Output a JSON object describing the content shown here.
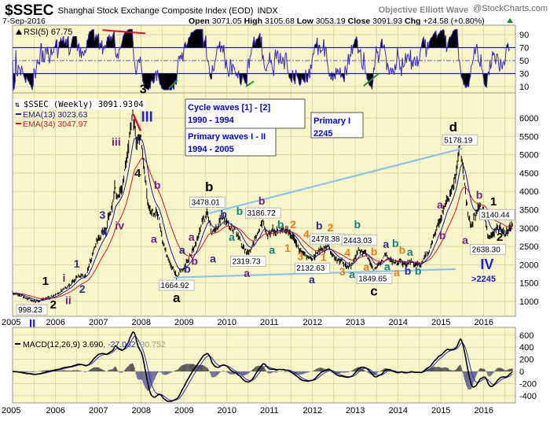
{
  "header": {
    "symbol": "$SSEC",
    "name": "Shanghai Stock Exchange Composite Index (EOD)",
    "exchange": "INDX",
    "brand": "Objective Elliott Wave",
    "site": "@StockCharts.com",
    "date": "7-Sep-2016",
    "open_label": "Open",
    "open": "3071.05",
    "high_label": "High",
    "high": "3105.68",
    "low_label": "Low",
    "low": "3053.19",
    "close_label": "Close",
    "close": "3091.93",
    "chg_label": "Chg",
    "chg": "+24.58 (+0.80%)"
  },
  "rsi_panel": {
    "label": "RSI(5) 67.75",
    "ticks": [
      "90",
      "70",
      "50",
      "30",
      "10"
    ]
  },
  "price_panel": {
    "legend_title": "$SSEC (Weekly) 3091.93",
    "legend_peak_suffix": "04",
    "ema13_label": "EMA(13) 3023.63",
    "ema34_label": "EMA(34) 3047.97",
    "ticks": [
      "6000",
      "5500",
      "5000",
      "4500",
      "4000",
      "3500",
      "3000",
      "2500",
      "2000",
      "1500",
      "1000"
    ],
    "boxes": [
      {
        "line1": "Cycle waves [1] - [2]",
        "line2": "1990 - 1994"
      },
      {
        "line1": "Primary waves I - II",
        "line2": "1994 - 2005"
      },
      {
        "line1": "Primary I",
        "line2": "2245"
      }
    ]
  },
  "macd_panel": {
    "label": "MACD(12,26,9)",
    "macd": "3.690",
    "signal": ", -27.062",
    "hist": ", 30.752",
    "ticks": [
      "600",
      "400",
      "200",
      "0",
      "-200",
      "-400"
    ]
  },
  "x_axis": {
    "years": [
      "2005",
      "2006",
      "2007",
      "2008",
      "2009",
      "2010",
      "2011",
      "2012",
      "2013",
      "2014",
      "2015",
      "2016"
    ],
    "marker": "II"
  },
  "colors": {
    "panel": "#f8f6c8",
    "grid": "#cfcf9a",
    "ema13": "#1a1aa8",
    "ema34": "#e0102a",
    "trend": "#8ec4f0",
    "navy": "#2b2b9a",
    "purple": "#7a1a86",
    "teal": "#137f7f",
    "orange": "#f07a10",
    "blue": "#1a1aee"
  },
  "chart_data": {
    "type": "line",
    "title": "Shanghai Stock Exchange Composite Index (EOD) - Weekly",
    "xlabel": "",
    "ylabel": "",
    "xlim": [
      2005,
      2016.75
    ],
    "ylim": [
      750,
      6300
    ],
    "price_waypoints": [
      [
        2005.0,
        1260
      ],
      [
        2005.45,
        998
      ],
      [
        2005.9,
        1100
      ],
      [
        2006.0,
        1160
      ],
      [
        2006.3,
        1400
      ],
      [
        2006.5,
        1650
      ],
      [
        2006.7,
        1650
      ],
      [
        2006.95,
        2600
      ],
      [
        2007.2,
        3000
      ],
      [
        2007.4,
        4100
      ],
      [
        2007.45,
        3700
      ],
      [
        2007.6,
        4300
      ],
      [
        2007.8,
        6124
      ],
      [
        2007.9,
        5300
      ],
      [
        2008.0,
        5500
      ],
      [
        2008.1,
        4400
      ],
      [
        2008.2,
        3500
      ],
      [
        2008.4,
        3500
      ],
      [
        2008.5,
        2700
      ],
      [
        2008.7,
        2000
      ],
      [
        2008.83,
        1665
      ],
      [
        2008.95,
        1850
      ],
      [
        2009.1,
        2100
      ],
      [
        2009.3,
        2600
      ],
      [
        2009.55,
        3478
      ],
      [
        2009.65,
        2800
      ],
      [
        2009.9,
        3300
      ],
      [
        2010.1,
        3100
      ],
      [
        2010.4,
        2500
      ],
      [
        2010.5,
        2320
      ],
      [
        2010.6,
        2600
      ],
      [
        2010.85,
        3187
      ],
      [
        2010.95,
        2800
      ],
      [
        2011.3,
        3000
      ],
      [
        2011.5,
        2750
      ],
      [
        2011.7,
        2400
      ],
      [
        2012.0,
        2132
      ],
      [
        2012.2,
        2450
      ],
      [
        2012.35,
        2478
      ],
      [
        2012.6,
        2100
      ],
      [
        2012.9,
        1950
      ],
      [
        2013.1,
        2443
      ],
      [
        2013.3,
        2200
      ],
      [
        2013.45,
        1850
      ],
      [
        2013.7,
        2200
      ],
      [
        2014.0,
        2050
      ],
      [
        2014.3,
        2050
      ],
      [
        2014.5,
        2000
      ],
      [
        2014.7,
        2300
      ],
      [
        2015.0,
        3300
      ],
      [
        2015.3,
        4100
      ],
      [
        2015.45,
        5178
      ],
      [
        2015.6,
        3700
      ],
      [
        2015.7,
        3000
      ],
      [
        2015.85,
        3500
      ],
      [
        2016.0,
        3500
      ],
      [
        2016.1,
        2638
      ],
      [
        2016.3,
        3000
      ],
      [
        2016.5,
        2850
      ],
      [
        2016.68,
        3092
      ]
    ],
    "callouts": [
      {
        "text": "998.23",
        "x": 2005.45,
        "y": 998
      },
      {
        "text": "1664.92",
        "x": 2008.83,
        "y": 1665
      },
      {
        "text": "3478.01",
        "x": 2009.55,
        "y": 3478
      },
      {
        "text": "2319.73",
        "x": 2010.5,
        "y": 2320
      },
      {
        "text": "3186.72",
        "x": 2010.85,
        "y": 3187
      },
      {
        "text": "2132.63",
        "x": 2012.0,
        "y": 2132
      },
      {
        "text": "2478.38",
        "x": 2012.35,
        "y": 2478
      },
      {
        "text": "2443.03",
        "x": 2013.1,
        "y": 2443
      },
      {
        "text": "1849.65",
        "x": 2013.45,
        "y": 1850
      },
      {
        "text": "5178.19",
        "x": 2015.45,
        "y": 5178
      },
      {
        "text": "3140.44",
        "x": 2016.62,
        "y": 3140
      },
      {
        "text": "2638.30",
        "x": 2016.1,
        "y": 2638
      }
    ],
    "annotations": [
      {
        "text": "3",
        "c": "black",
        "x": 2008.05,
        "y": 6680,
        "s": 16
      },
      {
        "text": "III",
        "c": "blue",
        "x": 2008.14,
        "y": 5900,
        "s": 18
      },
      {
        "text": "4",
        "c": "black",
        "x": 2007.92,
        "y": 4390,
        "s": 15
      },
      {
        "text": "iii",
        "c": "purple",
        "x": 2007.42,
        "y": 5250,
        "s": 14
      },
      {
        "text": "b",
        "c": "purple",
        "x": 2008.38,
        "y": 4070,
        "s": 14
      },
      {
        "text": "iv",
        "c": "purple",
        "x": 2007.5,
        "y": 2960,
        "s": 14
      },
      {
        "text": "3",
        "c": "navy",
        "x": 2007.1,
        "y": 3250,
        "s": 14
      },
      {
        "text": "4",
        "c": "navy",
        "x": 2007.15,
        "y": 2780,
        "s": 14
      },
      {
        "text": "a",
        "c": "purple",
        "x": 2008.3,
        "y": 2600,
        "s": 14
      },
      {
        "text": "1",
        "c": "navy",
        "x": 2006.5,
        "y": 1920,
        "s": 14
      },
      {
        "text": "2",
        "c": "navy",
        "x": 2006.63,
        "y": 1240,
        "s": 14
      },
      {
        "text": "i",
        "c": "purple",
        "x": 2006.2,
        "y": 1540,
        "s": 14
      },
      {
        "text": "ii",
        "c": "purple",
        "x": 2006.3,
        "y": 920,
        "s": 14
      },
      {
        "text": "1",
        "c": "black",
        "x": 2005.77,
        "y": 1450,
        "s": 15
      },
      {
        "text": "2",
        "c": "black",
        "x": 2005.95,
        "y": 810,
        "s": 15
      },
      {
        "text": "a",
        "c": "navy",
        "x": 2008.96,
        "y": 2300,
        "s": 14
      },
      {
        "text": "a",
        "c": "purple",
        "x": 2009.18,
        "y": 2650,
        "s": 14
      },
      {
        "text": "b",
        "c": "navy",
        "x": 2009.08,
        "y": 1780,
        "s": 14
      },
      {
        "text": "b",
        "c": "purple",
        "x": 2009.25,
        "y": 2000,
        "s": 14
      },
      {
        "text": "a",
        "c": "black",
        "x": 2008.83,
        "y": 1065,
        "s": 17
      },
      {
        "text": "b",
        "c": "black",
        "x": 2009.59,
        "y": 4000,
        "s": 17
      },
      {
        "text": "b",
        "c": "navy",
        "x": 2009.93,
        "y": 3580,
        "s": 14
      },
      {
        "text": "a",
        "c": "teal",
        "x": 2010.12,
        "y": 2650,
        "s": 14
      },
      {
        "text": "b",
        "c": "teal",
        "x": 2010.3,
        "y": 3360,
        "s": 14
      },
      {
        "text": "a",
        "c": "navy",
        "x": 2009.68,
        "y": 2060,
        "s": 14
      },
      {
        "text": "b",
        "c": "purple",
        "x": 2010.82,
        "y": 3600,
        "s": 14
      },
      {
        "text": "b",
        "c": "teal",
        "x": 2011.26,
        "y": 3250,
        "s": 14
      },
      {
        "text": "a",
        "c": "teal",
        "x": 2011.06,
        "y": 2300,
        "s": 14
      },
      {
        "text": "a",
        "c": "purple",
        "x": 2010.47,
        "y": 1710,
        "s": 14
      },
      {
        "text": "2",
        "c": "orange",
        "x": 2011.55,
        "y": 3000,
        "s": 14
      },
      {
        "text": "1",
        "c": "orange",
        "x": 2011.42,
        "y": 2350,
        "s": 14
      },
      {
        "text": "4",
        "c": "orange",
        "x": 2011.86,
        "y": 2730,
        "s": 14
      },
      {
        "text": "3",
        "c": "orange",
        "x": 2011.72,
        "y": 2000,
        "s": 14
      },
      {
        "text": "1",
        "c": "orange",
        "x": 2012.26,
        "y": 2020,
        "s": 14
      },
      {
        "text": "b",
        "c": "navy",
        "x": 2012.16,
        "y": 2960,
        "s": 14
      },
      {
        "text": "2",
        "c": "orange",
        "x": 2012.42,
        "y": 2700,
        "s": 14
      },
      {
        "text": "a",
        "c": "navy",
        "x": 2011.99,
        "y": 1580,
        "s": 14
      },
      {
        "text": "3",
        "c": "orange",
        "x": 2012.7,
        "y": 1710,
        "s": 14
      },
      {
        "text": "4",
        "c": "orange",
        "x": 2012.82,
        "y": 2390,
        "s": 14
      },
      {
        "text": "a",
        "c": "teal",
        "x": 2012.93,
        "y": 1630,
        "s": 14
      },
      {
        "text": "b",
        "c": "teal",
        "x": 2013.05,
        "y": 3000,
        "s": 14
      },
      {
        "text": "a",
        "c": "orange",
        "x": 2013.26,
        "y": 1840,
        "s": 14
      },
      {
        "text": "b",
        "c": "orange",
        "x": 2013.44,
        "y": 2560,
        "s": 14
      },
      {
        "text": "c",
        "c": "black",
        "x": 2013.44,
        "y": 1200,
        "s": 17
      },
      {
        "text": "a",
        "c": "teal",
        "x": 2013.75,
        "y": 1800,
        "s": 14
      },
      {
        "text": "a",
        "c": "navy",
        "x": 2013.72,
        "y": 2460,
        "s": 14
      },
      {
        "text": "b",
        "c": "teal",
        "x": 2013.94,
        "y": 2480,
        "s": 14
      },
      {
        "text": "b",
        "c": "orange",
        "x": 2014.1,
        "y": 2300,
        "s": 14
      },
      {
        "text": "a",
        "c": "orange",
        "x": 2013.97,
        "y": 1690,
        "s": 14
      },
      {
        "text": "b",
        "c": "navy",
        "x": 2014.23,
        "y": 1730,
        "s": 14
      },
      {
        "text": "a",
        "c": "teal",
        "x": 2014.28,
        "y": 2240,
        "s": 14
      },
      {
        "text": "b",
        "c": "teal",
        "x": 2014.47,
        "y": 1730,
        "s": 14
      },
      {
        "text": "a",
        "c": "purple",
        "x": 2014.98,
        "y": 3530,
        "s": 14
      },
      {
        "text": "b",
        "c": "purple",
        "x": 2015.04,
        "y": 2700,
        "s": 14
      },
      {
        "text": "d",
        "c": "black",
        "x": 2015.29,
        "y": 5640,
        "s": 17
      },
      {
        "text": "b",
        "c": "purple",
        "x": 2015.9,
        "y": 3800,
        "s": 14
      },
      {
        "text": "a",
        "c": "purple",
        "x": 2015.57,
        "y": 2570,
        "s": 14
      },
      {
        "text": "1",
        "c": "black",
        "x": 2016.23,
        "y": 3270,
        "s": 15
      },
      {
        "text": "2",
        "c": "black",
        "x": 2016.38,
        "y": 2480,
        "s": 15
      },
      {
        "text": "IV",
        "c": "blue",
        "x": 2016.08,
        "y": 1880,
        "s": 18
      },
      {
        "text": ">2245",
        "c": "blue",
        "x": 2016.0,
        "y": 1540,
        "s": 11
      }
    ],
    "trendlines": [
      {
        "name": "upper-trendline",
        "from": [
          2009.58,
          3400
        ],
        "to": [
          2015.5,
          5170
        ],
        "color": "trend"
      },
      {
        "name": "lower-trendline",
        "from": [
          2008.75,
          1650
        ],
        "to": [
          2015.35,
          1880
        ],
        "color": "trend"
      },
      {
        "name": "wave-3-to-III-line",
        "from": [
          2007.82,
          6100
        ],
        "to": [
          2007.99,
          5650
        ],
        "color": "ema34"
      }
    ],
    "rsi_divergences": [
      {
        "name": "rsi-bearish-divergence-line",
        "from": [
          2007.1,
          97
        ],
        "to": [
          2008.1,
          92
        ],
        "color": "ema34"
      },
      {
        "name": "rsi-bullish-divergence-line-2008",
        "from": [
          2008.65,
          7
        ],
        "to": [
          2008.85,
          20
        ],
        "color": "#1a9a1a"
      },
      {
        "name": "rsi-bullish-divergence-line-2010",
        "from": [
          2010.45,
          10
        ],
        "to": [
          2010.63,
          18
        ],
        "color": "#1a9a1a"
      },
      {
        "name": "rsi-bullish-divergence-line-2013",
        "from": [
          2013.2,
          11
        ],
        "to": [
          2013.55,
          30
        ],
        "color": "#1a9a1a"
      }
    ],
    "series": [
      {
        "name": "$SSEC (Weekly)",
        "last": 3091.93
      },
      {
        "name": "EMA(13)",
        "last": 3023.63
      },
      {
        "name": "EMA(34)",
        "last": 3047.97
      },
      {
        "name": "RSI(5)",
        "last": 67.75
      },
      {
        "name": "MACD(12,26,9)",
        "last": [
          3.69,
          -27.062,
          30.752
        ]
      }
    ]
  }
}
